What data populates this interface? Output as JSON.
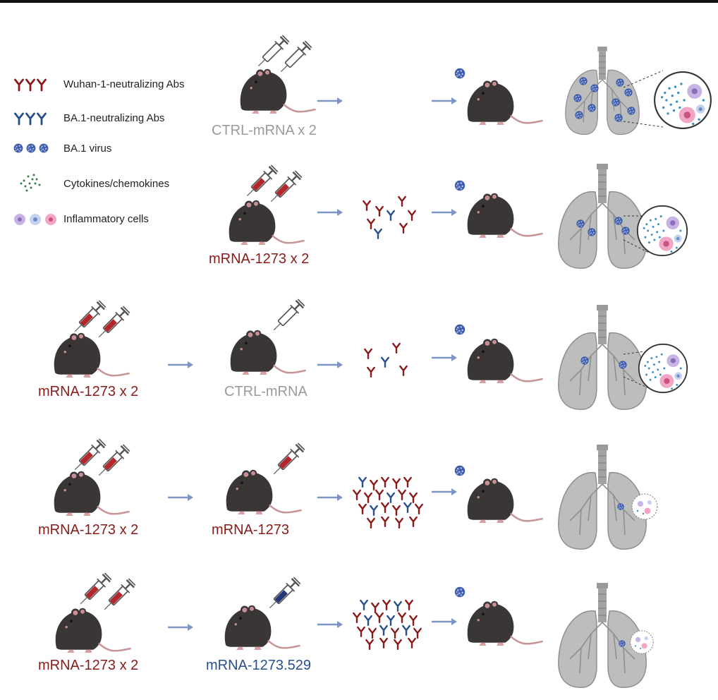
{
  "legend": {
    "wuhan_abs": "Wuhan-1-neutralizing Abs",
    "ba1_abs": "BA.1-neutralizing Abs",
    "ba1_virus": "BA.1 virus",
    "cytokines": "Cytokines/chemokines",
    "inflammatory": "Inflammatory cells"
  },
  "captions": {
    "row1_prime": "CTRL-mRNA x 2",
    "row2_prime": "mRNA-1273 x 2",
    "row3_prime": "mRNA-1273 x 2",
    "row3_boost": "CTRL-mRNA",
    "row4_prime": "mRNA-1273 x 2",
    "row4_boost": "mRNA-1273",
    "row5_prime": "mRNA-1273 x 2",
    "row5_boost": "mRNA-1273.529"
  },
  "colors": {
    "wuhan_red": "#8b1a1a",
    "ba1_blue": "#2a4f8f",
    "ctrl_gray": "#9a9a9a",
    "mouse": "#3a3636",
    "lung": "#b7b7b7",
    "arrow": "#7f95c2"
  },
  "icons": {
    "mouse": "mouse-icon",
    "syringe": "syringe-icon",
    "virus": "virus-icon",
    "antibody": "antibody-icon",
    "lungs": "lungs-icon",
    "inflammation": "inflammation-zoom-icon"
  }
}
